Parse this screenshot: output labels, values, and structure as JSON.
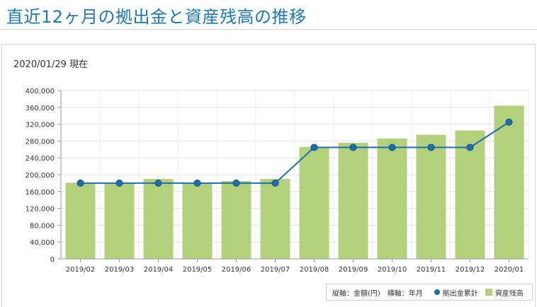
{
  "page": {
    "title": "直近12ヶ月の拠出金と資産残高の推移",
    "as_of": "2020/01/29 現在"
  },
  "legend": {
    "axis_note": "縦軸：金額(円)　横軸：年月",
    "contribution_label": "拠出金累計",
    "balance_label": "資産残高"
  },
  "colors": {
    "bar": "#b3d17a",
    "line": "#1d70b0",
    "title": "#1a7ab3"
  },
  "chart_data": {
    "type": "bar",
    "categories": [
      "2019/02",
      "2019/03",
      "2019/04",
      "2019/05",
      "2019/06",
      "2019/07",
      "2019/08",
      "2019/09",
      "2019/10",
      "2019/11",
      "2019/12",
      "2020/01"
    ],
    "series": [
      {
        "name": "資産残高",
        "type": "bar",
        "values": [
          181000,
          180000,
          190000,
          180000,
          185000,
          190000,
          266000,
          276000,
          286000,
          295000,
          305000,
          364000
        ]
      },
      {
        "name": "拠出金累計",
        "type": "line",
        "values": [
          180000,
          180000,
          180000,
          180000,
          180000,
          180000,
          265000,
          265000,
          265000,
          265000,
          265000,
          325000
        ]
      }
    ],
    "ylim": [
      0,
      400000
    ],
    "yticks": [
      0,
      40000,
      80000,
      120000,
      160000,
      200000,
      240000,
      280000,
      320000,
      360000,
      400000
    ],
    "ytick_labels": [
      "0",
      "40,000",
      "80,000",
      "120,000",
      "160,000",
      "200,000",
      "240,000",
      "280,000",
      "320,000",
      "360,000",
      "400,000"
    ],
    "grid": true,
    "legend_position": "bottom-right"
  }
}
